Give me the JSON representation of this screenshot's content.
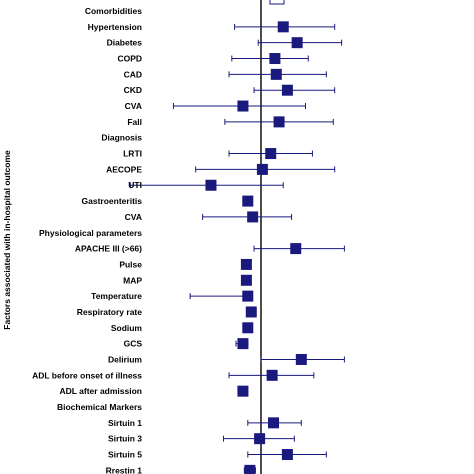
{
  "chart_data": {
    "type": "forest",
    "ylabel": "Factors associated with in-hospital outcome",
    "reference_value": 1,
    "legend": "marker",
    "rows": [
      {
        "label": "Comorbidities",
        "header": true
      },
      {
        "label": "Hypertension",
        "est": 2.6,
        "lo": -0.9,
        "hi": 6.3
      },
      {
        "label": "Diabetes",
        "est": 3.6,
        "lo": 0.8,
        "hi": 6.8
      },
      {
        "label": "COPD",
        "est": 2.0,
        "lo": -1.1,
        "hi": 4.4
      },
      {
        "label": "CAD",
        "est": 2.1,
        "lo": -1.3,
        "hi": 5.7
      },
      {
        "label": "CKD",
        "est": 2.9,
        "lo": 0.5,
        "hi": 6.3
      },
      {
        "label": "CVA",
        "est": -0.3,
        "lo": -5.3,
        "hi": 4.2
      },
      {
        "label": "Fall",
        "est": 2.3,
        "lo": -1.6,
        "hi": 6.2
      },
      {
        "label": "Diagnosis",
        "header": true
      },
      {
        "label": "LRTI",
        "est": 1.7,
        "lo": -1.3,
        "hi": 4.7
      },
      {
        "label": "AECOPE",
        "est": 1.1,
        "lo": -3.7,
        "hi": 6.3
      },
      {
        "label": "UTI",
        "est": -2.6,
        "lo": -8.4,
        "hi": 2.6
      },
      {
        "label": "Gastroenteritis",
        "est": 0.05,
        "lo": null,
        "hi": null
      },
      {
        "label": "CVA",
        "est": 0.4,
        "lo": -3.2,
        "hi": 3.2
      },
      {
        "label": "Physiological parameters",
        "header": true
      },
      {
        "label": "APACHE III (>66)",
        "est": 3.5,
        "lo": 0.5,
        "hi": 7.0
      },
      {
        "label": "Pulse",
        "est": -0.05,
        "lo": null,
        "hi": null
      },
      {
        "label": "MAP",
        "est": -0.05,
        "lo": null,
        "hi": null
      },
      {
        "label": "Temperature",
        "est": 0.05,
        "lo": -4.1,
        "hi": 0.05
      },
      {
        "label": "Respiratory rate",
        "est": 0.3,
        "lo": null,
        "hi": null
      },
      {
        "label": "Sodium",
        "est": 0.05,
        "lo": null,
        "hi": null
      },
      {
        "label": "GCS",
        "est": -0.3,
        "lo": -0.8,
        "hi": 0.05
      },
      {
        "label": "Delirium",
        "est": 3.9,
        "lo": 1.0,
        "hi": 7.0
      },
      {
        "label": "ADL before onset of illness",
        "est": 1.8,
        "lo": -1.3,
        "hi": 4.8
      },
      {
        "label": "ADL after admission",
        "est": -0.3,
        "lo": null,
        "hi": null
      },
      {
        "label": "Biochemical Markers",
        "header": true
      },
      {
        "label": "Sirtuin 1",
        "est": 1.9,
        "lo": 0.05,
        "hi": 3.9
      },
      {
        "label": "Sirtuin 3",
        "est": 0.9,
        "lo": -1.7,
        "hi": 3.4
      },
      {
        "label": "Sirtuin 5",
        "est": 2.9,
        "lo": 0.05,
        "hi": 5.7
      },
      {
        "label": "Rrestin 1",
        "est": 0.2,
        "lo": -0.2,
        "hi": 0.6
      }
    ],
    "colors": {
      "marker": "#1a1a7e",
      "ci_line": "#1a1a7e",
      "reference": "#000000",
      "text": "#000000"
    }
  }
}
